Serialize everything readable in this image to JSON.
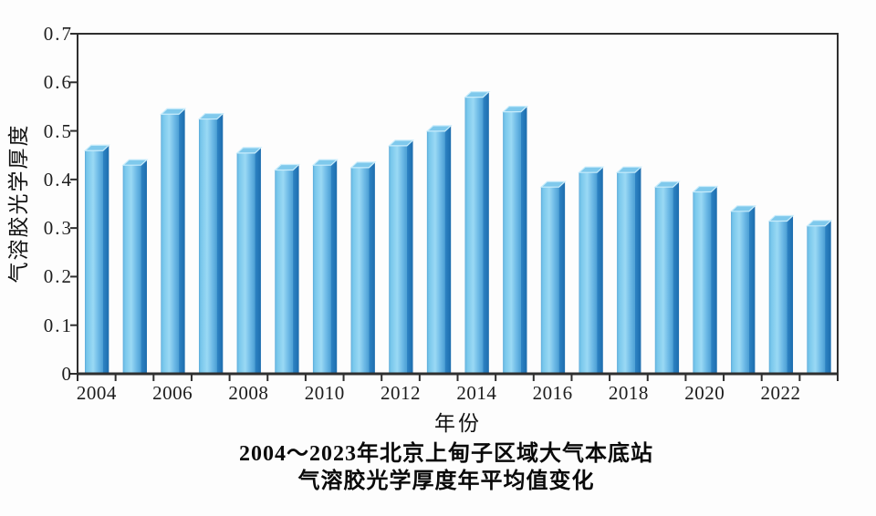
{
  "page": {
    "background": "#fdfdfd"
  },
  "chart_data": {
    "type": "bar",
    "title_lines": [
      "2004～2023年北京上甸子区域大气本底站",
      "气溶胶光学厚度年平均值变化"
    ],
    "xlabel": "年份",
    "ylabel": "气溶胶光学厚度",
    "categories": [
      2004,
      2005,
      2006,
      2007,
      2008,
      2009,
      2010,
      2011,
      2012,
      2013,
      2014,
      2015,
      2016,
      2017,
      2018,
      2019,
      2020,
      2021,
      2022,
      2023
    ],
    "values": [
      0.465,
      0.435,
      0.54,
      0.53,
      0.46,
      0.425,
      0.435,
      0.43,
      0.475,
      0.505,
      0.575,
      0.545,
      0.39,
      0.42,
      0.42,
      0.39,
      0.38,
      0.34,
      0.32,
      0.31
    ],
    "x_tick_labels": [
      "2004",
      "2006",
      "2008",
      "2010",
      "2012",
      "2014",
      "2016",
      "2018",
      "2020",
      "2022"
    ],
    "y_tick_labels": [
      "0",
      "0.1",
      "0.2",
      "0.3",
      "0.4",
      "0.5",
      "0.6",
      "0.7"
    ],
    "ylim": [
      0,
      0.7
    ],
    "grid": false,
    "legend": null,
    "colors": {
      "bar_front_edge": "#66b7e2",
      "bar_front_light": "#9ad9f4",
      "bar_front_shade": "#4c9fd4",
      "bar_side_dark": "#1d6dae",
      "bar_side": "#2e84c4",
      "bar_top": "#7fc9ec",
      "bar_top_edge": "#c8ecfb",
      "axis": "#2f2f2f",
      "text": "#1d1d1d"
    }
  }
}
